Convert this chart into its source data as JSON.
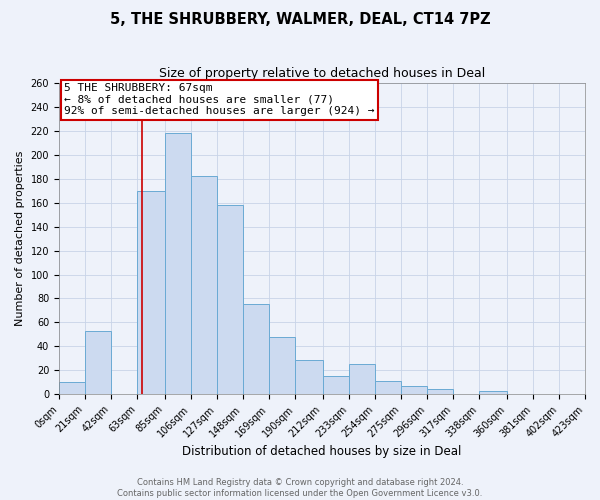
{
  "title": "5, THE SHRUBBERY, WALMER, DEAL, CT14 7PZ",
  "subtitle": "Size of property relative to detached houses in Deal",
  "xlabel": "Distribution of detached houses by size in Deal",
  "ylabel": "Number of detached properties",
  "bin_edges": [
    0,
    21,
    42,
    63,
    85,
    106,
    127,
    148,
    169,
    190,
    212,
    233,
    254,
    275,
    296,
    317,
    338,
    360,
    381,
    402,
    423
  ],
  "bin_heights": [
    10,
    53,
    0,
    170,
    218,
    182,
    158,
    75,
    48,
    29,
    15,
    25,
    11,
    7,
    4,
    0,
    3,
    0,
    0,
    0
  ],
  "bar_color": "#ccdaf0",
  "bar_edgecolor": "#6aaad4",
  "property_line_x": 67,
  "property_line_color": "#cc0000",
  "annotation_text": "5 THE SHRUBBERY: 67sqm\n← 8% of detached houses are smaller (77)\n92% of semi-detached houses are larger (924) →",
  "annotation_box_edgecolor": "#cc0000",
  "annotation_box_facecolor": "#ffffff",
  "ylim": [
    0,
    260
  ],
  "yticks": [
    0,
    20,
    40,
    60,
    80,
    100,
    120,
    140,
    160,
    180,
    200,
    220,
    240,
    260
  ],
  "grid_color": "#c8d4e8",
  "background_color": "#eef2fa",
  "footer_line1": "Contains HM Land Registry data © Crown copyright and database right 2024.",
  "footer_line2": "Contains public sector information licensed under the Open Government Licence v3.0.",
  "title_fontsize": 10.5,
  "subtitle_fontsize": 9,
  "xlabel_fontsize": 8.5,
  "ylabel_fontsize": 8,
  "tick_fontsize": 7,
  "annotation_fontsize": 8,
  "footer_fontsize": 6
}
